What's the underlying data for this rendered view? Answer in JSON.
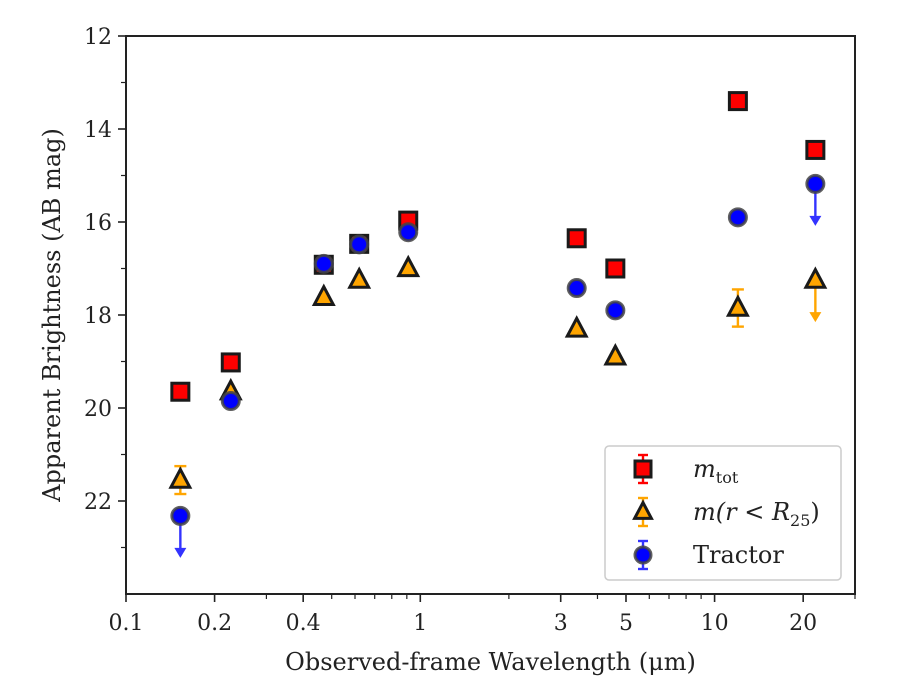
{
  "chart_data": {
    "type": "scatter",
    "xlabel": "Observed-frame Wavelength (μm)",
    "ylabel": "Apparent Brightness (AB mag)",
    "xscale": "log",
    "xlim": [
      0.1,
      30
    ],
    "ylim": [
      24,
      12
    ],
    "y_inverted": true,
    "grid": false,
    "legend_position": "bottom-right",
    "x_major_ticks": [
      0.1,
      0.2,
      0.4,
      1,
      3,
      5,
      10,
      20
    ],
    "x_major_tick_labels": [
      "0.1",
      "0.2",
      "0.4",
      "1",
      "3",
      "5",
      "10",
      "20"
    ],
    "y_ticks": [
      12,
      14,
      16,
      18,
      20,
      22
    ],
    "y_tick_labels": [
      "12",
      "14",
      "16",
      "18",
      "20",
      "22"
    ],
    "series": [
      {
        "name": "m_tot",
        "legend_main": "m",
        "legend_sub": "tot",
        "legend_suffix": "",
        "marker": "square",
        "color": "#ff0000",
        "edge_color": "#1a1a1a",
        "error_color": "#ff0000",
        "points": [
          {
            "x": 0.153,
            "y": 19.65
          },
          {
            "x": 0.227,
            "y": 19.02
          },
          {
            "x": 0.47,
            "y": 16.92
          },
          {
            "x": 0.62,
            "y": 16.47
          },
          {
            "x": 0.91,
            "y": 15.97
          },
          {
            "x": 3.4,
            "y": 16.35
          },
          {
            "x": 4.6,
            "y": 17.0
          },
          {
            "x": 12.0,
            "y": 13.4
          },
          {
            "x": 22.0,
            "y": 14.45
          }
        ]
      },
      {
        "name": "m(r < R25)",
        "legend_main": "m(r < R",
        "legend_sub": "25",
        "legend_suffix": ")",
        "marker": "triangle",
        "color": "#ffa500",
        "edge_color": "#1a1a1a",
        "error_color": "#ffa500",
        "points": [
          {
            "x": 0.153,
            "y": 21.55,
            "yerr": 0.3
          },
          {
            "x": 0.227,
            "y": 19.65
          },
          {
            "x": 0.47,
            "y": 17.62
          },
          {
            "x": 0.62,
            "y": 17.25
          },
          {
            "x": 0.91,
            "y": 17.0
          },
          {
            "x": 3.4,
            "y": 18.3
          },
          {
            "x": 4.6,
            "y": 18.9
          },
          {
            "x": 12.0,
            "y": 17.85,
            "yerr": 0.4
          },
          {
            "x": 22.0,
            "y": 17.25,
            "upper_limit": true
          }
        ]
      },
      {
        "name": "Tractor",
        "legend_main": "Tractor",
        "legend_sub": "",
        "legend_suffix": "",
        "marker": "circle",
        "color": "#0000ff",
        "edge_color": "#444444",
        "error_color": "#3333ff",
        "points": [
          {
            "x": 0.153,
            "y": 22.32,
            "upper_limit": true
          },
          {
            "x": 0.227,
            "y": 19.85
          },
          {
            "x": 0.47,
            "y": 16.9
          },
          {
            "x": 0.62,
            "y": 16.48
          },
          {
            "x": 0.91,
            "y": 16.22
          },
          {
            "x": 3.4,
            "y": 17.42
          },
          {
            "x": 4.6,
            "y": 17.9
          },
          {
            "x": 12.0,
            "y": 15.9
          },
          {
            "x": 22.0,
            "y": 15.18,
            "upper_limit": true
          }
        ]
      }
    ]
  }
}
